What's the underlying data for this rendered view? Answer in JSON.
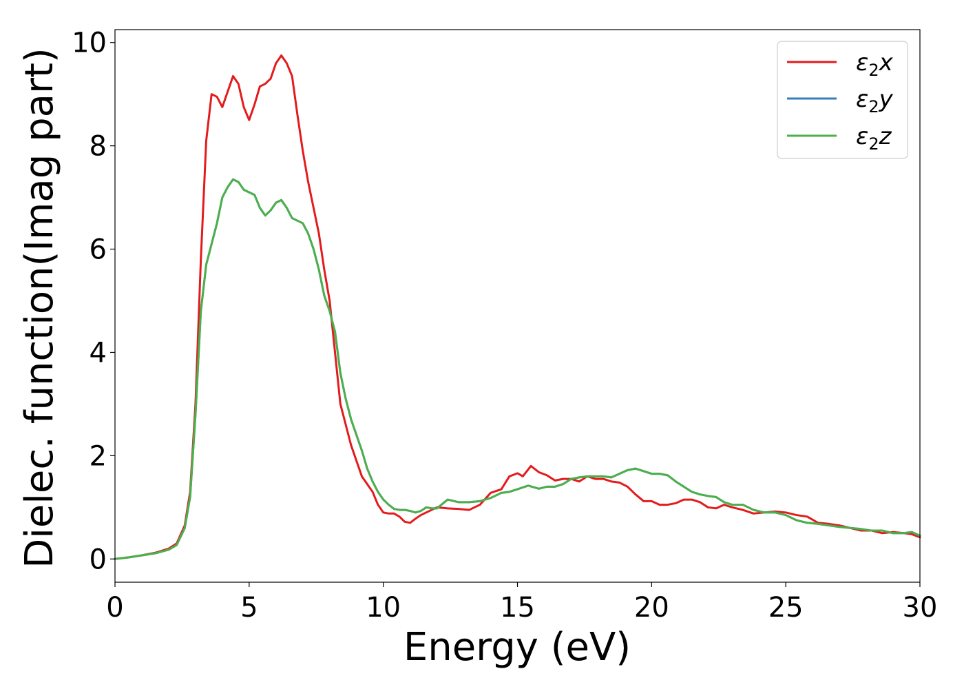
{
  "chart_data": {
    "type": "line",
    "xlabel": "Energy (eV)",
    "ylabel": "Dielec. function(Imag part)",
    "xlim": [
      0,
      30
    ],
    "ylim": [
      -0.45,
      10.25
    ],
    "xticks": [
      0,
      5,
      10,
      15,
      20,
      25,
      30
    ],
    "yticks": [
      0,
      2,
      4,
      6,
      8,
      10
    ],
    "legend_position": "top-right",
    "grid": false,
    "series": [
      {
        "name": "ε₂x",
        "legend_base": "ε",
        "legend_sub": "2",
        "legend_suffix": "x",
        "color": "#e41a1c",
        "x": [
          0,
          0.5,
          1,
          1.5,
          2,
          2.3,
          2.6,
          2.8,
          3.0,
          3.2,
          3.4,
          3.6,
          3.8,
          4.0,
          4.2,
          4.4,
          4.6,
          4.8,
          5.0,
          5.2,
          5.4,
          5.6,
          5.8,
          6.0,
          6.2,
          6.4,
          6.6,
          6.8,
          7.0,
          7.2,
          7.4,
          7.6,
          7.8,
          8.0,
          8.2,
          8.4,
          8.6,
          8.8,
          9.0,
          9.2,
          9.4,
          9.6,
          9.8,
          10.0,
          10.2,
          10.4,
          10.6,
          10.8,
          11.0,
          11.2,
          11.4,
          11.6,
          11.8,
          12.0,
          12.4,
          12.8,
          13.2,
          13.6,
          14.0,
          14.4,
          14.7,
          15.0,
          15.2,
          15.5,
          15.8,
          16.1,
          16.4,
          16.7,
          17.0,
          17.3,
          17.6,
          17.9,
          18.2,
          18.5,
          18.8,
          19.1,
          19.4,
          19.7,
          20.0,
          20.3,
          20.6,
          20.9,
          21.2,
          21.5,
          21.8,
          22.1,
          22.4,
          22.7,
          23.0,
          23.4,
          23.8,
          24.2,
          24.6,
          25.0,
          25.4,
          25.8,
          26.2,
          26.6,
          27.0,
          27.4,
          27.8,
          28.2,
          28.6,
          29.0,
          29.4,
          29.7,
          30.0
        ],
        "y": [
          0.0,
          0.03,
          0.07,
          0.12,
          0.2,
          0.3,
          0.65,
          1.3,
          3.0,
          5.8,
          8.1,
          9.0,
          8.95,
          8.75,
          9.05,
          9.35,
          9.2,
          8.75,
          8.5,
          8.8,
          9.15,
          9.2,
          9.3,
          9.6,
          9.75,
          9.6,
          9.35,
          8.6,
          7.9,
          7.3,
          6.8,
          6.3,
          5.6,
          5.0,
          4.0,
          3.0,
          2.6,
          2.2,
          1.9,
          1.6,
          1.45,
          1.3,
          1.05,
          0.9,
          0.88,
          0.88,
          0.82,
          0.72,
          0.7,
          0.78,
          0.85,
          0.9,
          0.95,
          1.0,
          0.98,
          0.97,
          0.95,
          1.05,
          1.28,
          1.35,
          1.6,
          1.66,
          1.6,
          1.8,
          1.68,
          1.62,
          1.52,
          1.55,
          1.55,
          1.5,
          1.6,
          1.55,
          1.55,
          1.5,
          1.48,
          1.4,
          1.25,
          1.12,
          1.12,
          1.05,
          1.05,
          1.08,
          1.15,
          1.15,
          1.1,
          1.0,
          0.98,
          1.05,
          1.0,
          0.95,
          0.88,
          0.9,
          0.92,
          0.9,
          0.85,
          0.82,
          0.7,
          0.68,
          0.65,
          0.6,
          0.55,
          0.55,
          0.5,
          0.52,
          0.5,
          0.48,
          0.42
        ]
      },
      {
        "name": "ε₂y",
        "legend_base": "ε",
        "legend_sub": "2",
        "legend_suffix": "y",
        "color": "#377eb8",
        "x": [
          0,
          0.5,
          1,
          1.5,
          2,
          2.3,
          2.6,
          2.8,
          3.0,
          3.2,
          3.4,
          3.6,
          3.8,
          4.0,
          4.2,
          4.4,
          4.6,
          4.8,
          5.0,
          5.2,
          5.4,
          5.6,
          5.8,
          6.0,
          6.2,
          6.4,
          6.6,
          6.8,
          7.0,
          7.2,
          7.4,
          7.6,
          7.8,
          8.0,
          8.2,
          8.4,
          8.6,
          8.8,
          9.0,
          9.2,
          9.4,
          9.6,
          9.8,
          10.0,
          10.2,
          10.4,
          10.6,
          10.8,
          11.0,
          11.2,
          11.4,
          11.6,
          11.8,
          12.0,
          12.4,
          12.8,
          13.2,
          13.6,
          14.0,
          14.4,
          14.7,
          15.0,
          15.4,
          15.8,
          16.1,
          16.4,
          16.7,
          17.0,
          17.3,
          17.6,
          17.9,
          18.2,
          18.5,
          18.8,
          19.1,
          19.4,
          19.7,
          20.0,
          20.3,
          20.6,
          20.9,
          21.2,
          21.5,
          21.8,
          22.1,
          22.4,
          22.7,
          23.0,
          23.4,
          23.8,
          24.2,
          24.6,
          25.0,
          25.4,
          25.8,
          26.2,
          26.6,
          27.0,
          27.4,
          27.8,
          28.2,
          28.6,
          29.0,
          29.4,
          29.7,
          30.0
        ],
        "y": [
          0.0,
          0.03,
          0.07,
          0.11,
          0.18,
          0.27,
          0.6,
          1.2,
          2.8,
          4.8,
          5.7,
          6.1,
          6.5,
          7.0,
          7.2,
          7.35,
          7.3,
          7.15,
          7.1,
          7.05,
          6.8,
          6.65,
          6.75,
          6.9,
          6.95,
          6.8,
          6.6,
          6.55,
          6.5,
          6.3,
          6.0,
          5.6,
          5.1,
          4.8,
          4.4,
          3.6,
          3.1,
          2.7,
          2.4,
          2.1,
          1.75,
          1.5,
          1.3,
          1.15,
          1.05,
          0.97,
          0.95,
          0.95,
          0.93,
          0.9,
          0.93,
          1.0,
          0.98,
          0.98,
          1.15,
          1.1,
          1.1,
          1.12,
          1.18,
          1.28,
          1.3,
          1.35,
          1.42,
          1.36,
          1.4,
          1.4,
          1.45,
          1.55,
          1.58,
          1.6,
          1.6,
          1.6,
          1.58,
          1.65,
          1.72,
          1.75,
          1.7,
          1.65,
          1.65,
          1.62,
          1.5,
          1.4,
          1.3,
          1.25,
          1.22,
          1.2,
          1.1,
          1.05,
          1.05,
          0.95,
          0.9,
          0.9,
          0.85,
          0.75,
          0.7,
          0.68,
          0.65,
          0.62,
          0.6,
          0.58,
          0.55,
          0.55,
          0.5,
          0.5,
          0.52,
          0.45
        ]
      },
      {
        "name": "ε₂z",
        "legend_base": "ε",
        "legend_sub": "2",
        "legend_suffix": "z",
        "color": "#4daf4a",
        "x": [
          0,
          0.5,
          1,
          1.5,
          2,
          2.3,
          2.6,
          2.8,
          3.0,
          3.2,
          3.4,
          3.6,
          3.8,
          4.0,
          4.2,
          4.4,
          4.6,
          4.8,
          5.0,
          5.2,
          5.4,
          5.6,
          5.8,
          6.0,
          6.2,
          6.4,
          6.6,
          6.8,
          7.0,
          7.2,
          7.4,
          7.6,
          7.8,
          8.0,
          8.2,
          8.4,
          8.6,
          8.8,
          9.0,
          9.2,
          9.4,
          9.6,
          9.8,
          10.0,
          10.2,
          10.4,
          10.6,
          10.8,
          11.0,
          11.2,
          11.4,
          11.6,
          11.8,
          12.0,
          12.4,
          12.8,
          13.2,
          13.6,
          14.0,
          14.4,
          14.7,
          15.0,
          15.4,
          15.8,
          16.1,
          16.4,
          16.7,
          17.0,
          17.3,
          17.6,
          17.9,
          18.2,
          18.5,
          18.8,
          19.1,
          19.4,
          19.7,
          20.0,
          20.3,
          20.6,
          20.9,
          21.2,
          21.5,
          21.8,
          22.1,
          22.4,
          22.7,
          23.0,
          23.4,
          23.8,
          24.2,
          24.6,
          25.0,
          25.4,
          25.8,
          26.2,
          26.6,
          27.0,
          27.4,
          27.8,
          28.2,
          28.6,
          29.0,
          29.4,
          29.7,
          30.0
        ],
        "y": [
          0.0,
          0.03,
          0.07,
          0.11,
          0.18,
          0.27,
          0.6,
          1.2,
          2.8,
          4.8,
          5.7,
          6.1,
          6.5,
          7.0,
          7.2,
          7.35,
          7.3,
          7.15,
          7.1,
          7.05,
          6.8,
          6.65,
          6.75,
          6.9,
          6.95,
          6.8,
          6.6,
          6.55,
          6.5,
          6.3,
          6.0,
          5.6,
          5.1,
          4.8,
          4.4,
          3.6,
          3.1,
          2.7,
          2.4,
          2.1,
          1.75,
          1.5,
          1.3,
          1.15,
          1.05,
          0.97,
          0.95,
          0.95,
          0.93,
          0.9,
          0.93,
          1.0,
          0.98,
          0.98,
          1.15,
          1.1,
          1.1,
          1.12,
          1.18,
          1.28,
          1.3,
          1.35,
          1.42,
          1.36,
          1.4,
          1.4,
          1.45,
          1.55,
          1.58,
          1.6,
          1.6,
          1.6,
          1.58,
          1.65,
          1.72,
          1.75,
          1.7,
          1.65,
          1.65,
          1.62,
          1.5,
          1.4,
          1.3,
          1.25,
          1.22,
          1.2,
          1.1,
          1.05,
          1.05,
          0.95,
          0.9,
          0.9,
          0.85,
          0.75,
          0.7,
          0.68,
          0.65,
          0.62,
          0.6,
          0.58,
          0.55,
          0.55,
          0.5,
          0.5,
          0.52,
          0.45
        ]
      }
    ]
  }
}
